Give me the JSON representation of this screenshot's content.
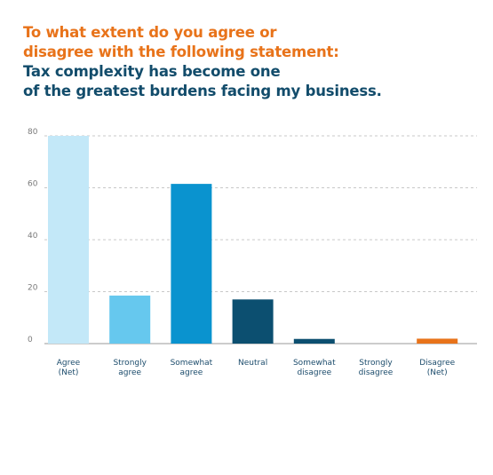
{
  "title": {
    "question_lines": [
      "To what extent do you agree or",
      "disagree with the following statement:"
    ],
    "statement_lines": [
      "Tax complexity has become one",
      "of the greatest burdens facing my business."
    ]
  },
  "colors": {
    "question": "#e8731a",
    "statement": "#124c6b",
    "grid": "#c8c8c8",
    "axis": "#9a9a9a"
  },
  "chart_data": {
    "type": "bar",
    "categories": [
      [
        "Agree",
        "(Net)"
      ],
      [
        "Strongly",
        "agree"
      ],
      [
        "Somewhat",
        "agree"
      ],
      [
        "Neutral"
      ],
      [
        "Somewhat",
        "disagree"
      ],
      [
        "Strongly",
        "disagree"
      ],
      [
        "Disagree",
        "(Net)"
      ]
    ],
    "values": [
      80,
      18.5,
      61.5,
      17,
      1.8,
      0,
      1.9
    ],
    "bar_colors": [
      "#c3e8f8",
      "#66c8ee",
      "#0a93cf",
      "#0c4f70",
      "#0c4f70",
      "#0c4f70",
      "#e8731a"
    ],
    "yticks": [
      0,
      20,
      40,
      60,
      80
    ],
    "ylim": [
      0,
      80
    ],
    "grid": true,
    "xlabel": "",
    "ylabel": ""
  }
}
